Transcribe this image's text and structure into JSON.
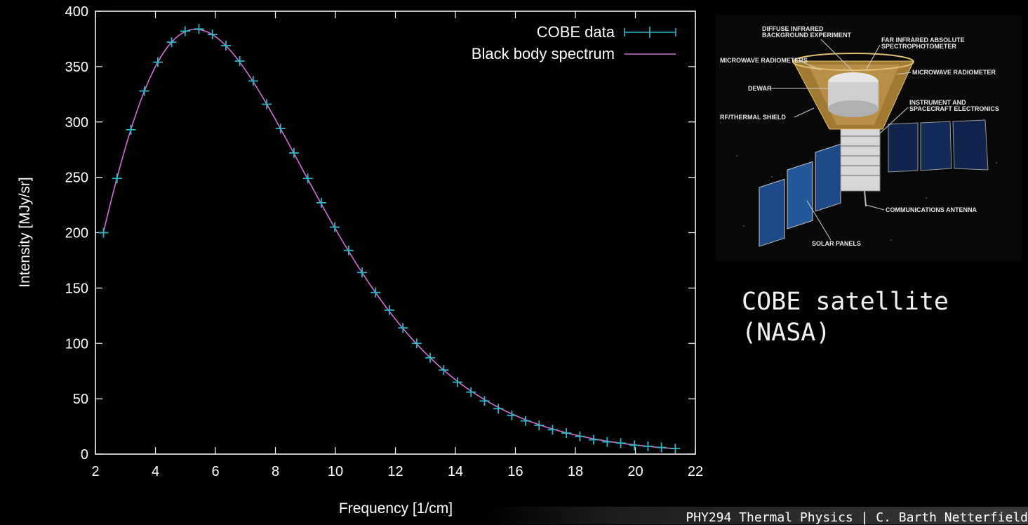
{
  "chart_data": {
    "type": "line",
    "xlabel": "Frequency [1/cm]",
    "ylabel": "Intensity [MJy/sr]",
    "xlim": [
      2,
      22
    ],
    "ylim": [
      0,
      400
    ],
    "xticks": [
      "2",
      "4",
      "6",
      "8",
      "10",
      "12",
      "14",
      "16",
      "18",
      "20",
      "22"
    ],
    "yticks": [
      "0",
      "50",
      "100",
      "150",
      "200",
      "250",
      "300",
      "350",
      "400"
    ],
    "legend_position": "top-right",
    "series": [
      {
        "name": "COBE data",
        "style": "points-with-errorbars",
        "color": "#2fb5c5",
        "x": [
          2.27,
          2.72,
          3.18,
          3.63,
          4.08,
          4.54,
          4.99,
          5.45,
          5.9,
          6.35,
          6.81,
          7.26,
          7.71,
          8.17,
          8.62,
          9.08,
          9.53,
          9.98,
          10.44,
          10.89,
          11.34,
          11.8,
          12.25,
          12.71,
          13.16,
          13.61,
          14.07,
          14.52,
          14.97,
          15.43,
          15.88,
          16.34,
          16.79,
          17.24,
          17.7,
          18.15,
          18.61,
          19.06,
          19.51,
          19.97,
          20.42,
          20.87,
          21.33
        ],
        "y": [
          200,
          249,
          293,
          328,
          354,
          372,
          382,
          384,
          379,
          369,
          355,
          337,
          316,
          294,
          272,
          249,
          227,
          205,
          184,
          164,
          146,
          130,
          114,
          100,
          87,
          76,
          65,
          56,
          48,
          41,
          35,
          30,
          26,
          22,
          19,
          16,
          13,
          11,
          10,
          8,
          7,
          6,
          5
        ]
      },
      {
        "name": "Black body spectrum",
        "style": "line",
        "color": "#d070d0"
      }
    ]
  },
  "satellite": {
    "labels": [
      "DIFFUSE INFRARED\nBACKGROUND EXPERIMENT",
      "FAR INFRARED ABSOLUTE\nSPECTROPHOTOMETER",
      "MICROWAVE RADIOMETERS",
      "MICROWAVE RADIOMETER",
      "DEWAR",
      "INSTRUMENT AND\nSPACECRAFT ELECTRONICS",
      "RF/THERMAL SHIELD",
      "COMMUNICATIONS ANTENNA",
      "SOLAR PANELS"
    ],
    "caption": "COBE satellite\n(NASA)"
  },
  "footer": "PHY294 Thermal Physics | C. Barth Netterfield"
}
